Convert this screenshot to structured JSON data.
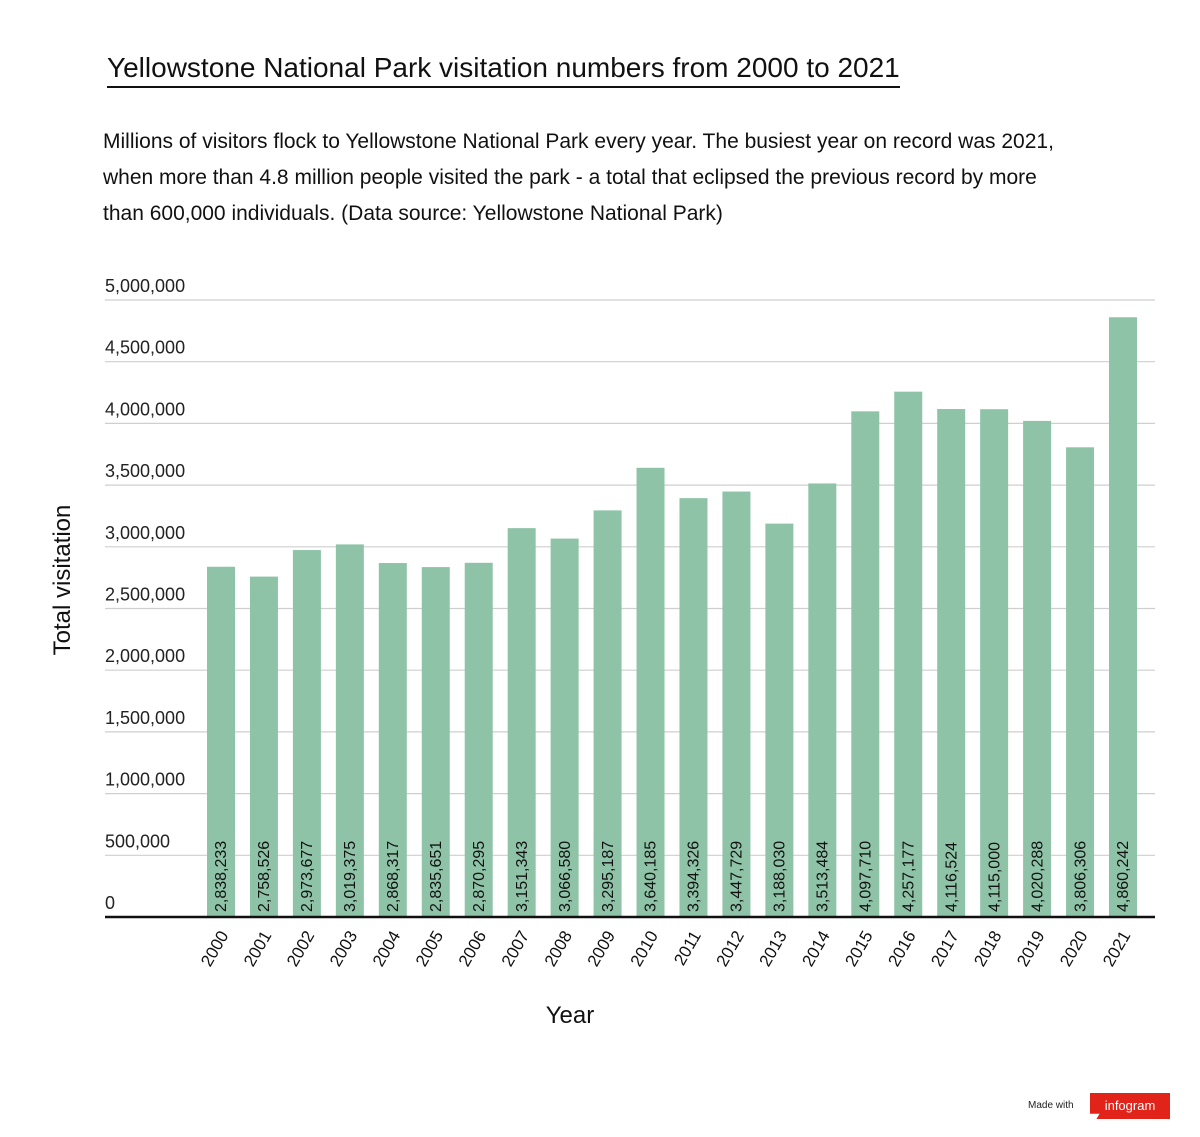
{
  "title": "Yellowstone National Park visitation numbers from 2000 to 2021",
  "description": "Millions of visitors flock to Yellowstone National Park every year. The busiest year on record was 2021, when more than 4.8 million people visited the park - a total that eclipsed the previous record by more than 600,000 individuals. (Data source: Yellowstone National Park)",
  "footer": {
    "made_with": "Made with",
    "brand": "infogram"
  },
  "colors": {
    "bar": "#8fc3a7",
    "grid": "#cfcfcf",
    "axis": "#111111",
    "brand": "#e2231a"
  },
  "chart_data": {
    "type": "bar",
    "xlabel": "Year",
    "ylabel": "Total visitation",
    "ylim": [
      0,
      5000000
    ],
    "grid": true,
    "yticks": [
      0,
      500000,
      1000000,
      1500000,
      2000000,
      2500000,
      3000000,
      3500000,
      4000000,
      4500000,
      5000000
    ],
    "ytick_labels": [
      "0",
      "500,000",
      "1,000,000",
      "1,500,000",
      "2,000,000",
      "2,500,000",
      "3,000,000",
      "3,500,000",
      "4,000,000",
      "4,500,000",
      "5,000,000"
    ],
    "categories": [
      "2000",
      "2001",
      "2002",
      "2003",
      "2004",
      "2005",
      "2006",
      "2007",
      "2008",
      "2009",
      "2010",
      "2011",
      "2012",
      "2013",
      "2014",
      "2015",
      "2016",
      "2017",
      "2018",
      "2019",
      "2020",
      "2021"
    ],
    "values": [
      2838233,
      2758526,
      2973677,
      3019375,
      2868317,
      2835651,
      2870295,
      3151343,
      3066580,
      3295187,
      3640185,
      3394326,
      3447729,
      3188030,
      3513484,
      4097710,
      4257177,
      4116524,
      4115000,
      4020288,
      3806306,
      4860242
    ],
    "value_labels": [
      "2,838,233",
      "2,758,526",
      "2,973,677",
      "3,019,375",
      "2,868,317",
      "2,835,651",
      "2,870,295",
      "3,151,343",
      "3,066,580",
      "3,295,187",
      "3,640,185",
      "3,394,326",
      "3,447,729",
      "3,188,030",
      "3,513,484",
      "4,097,710",
      "4,257,177",
      "4,116,524",
      "4,115,000",
      "4,020,288",
      "3,806,306",
      "4,860,242"
    ]
  }
}
